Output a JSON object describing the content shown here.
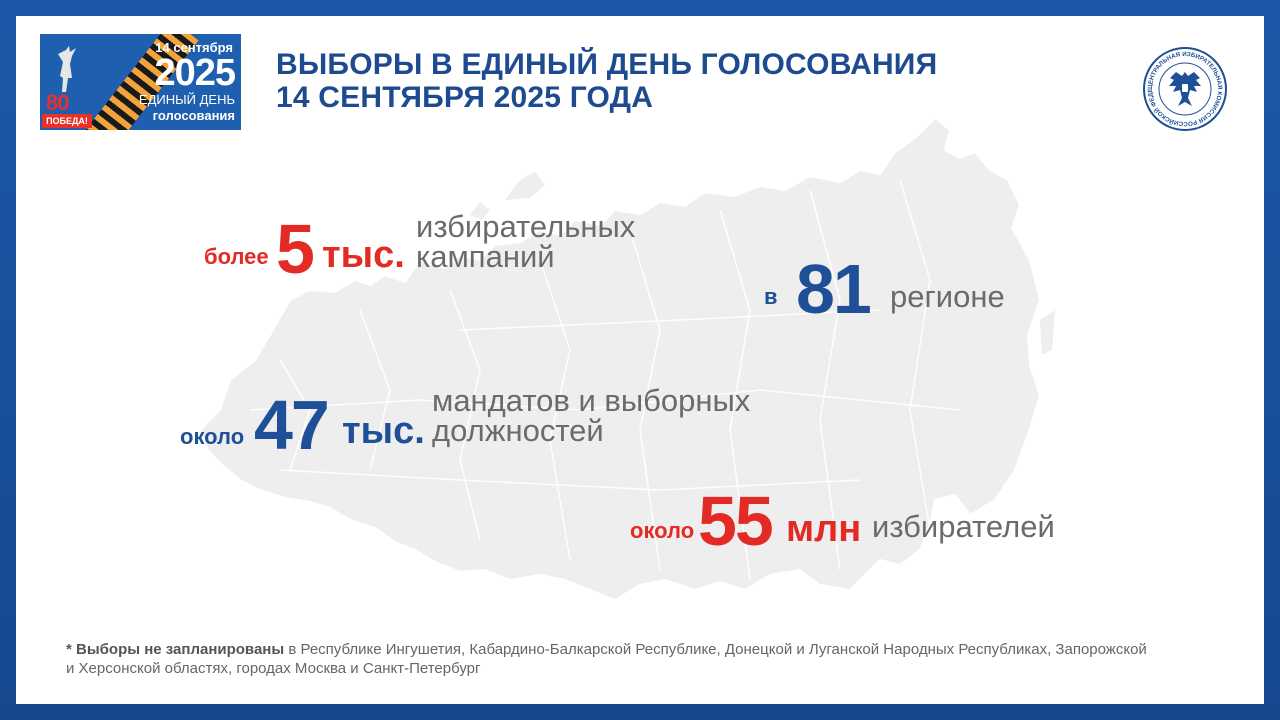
{
  "logo": {
    "date": "14 сентября",
    "year": "2025",
    "line1": "ЕДИНЫЙ ДЕНЬ",
    "line2": "голосования",
    "eighty": "80",
    "pobeda": "ПОБЕДА!"
  },
  "title": {
    "line1": "ВЫБОРЫ В ЕДИНЫЙ ДЕНЬ ГОЛОСОВАНИЯ",
    "line2": "14 СЕНТЯБРЯ 2025 ГОДА"
  },
  "emblem": {
    "ring_text": "ЦЕНТРАЛЬНАЯ ИЗБИРАТЕЛЬНАЯ КОМИССИЯ РОССИЙСКОЙ ФЕДЕРАЦИИ",
    "icon": "double-headed-eagle-icon"
  },
  "stats": {
    "campaigns": {
      "prefix": "более",
      "number": "5",
      "unit": "тыс.",
      "desc1": "избирательных",
      "desc2": "кампаний"
    },
    "regions": {
      "prefix": "в",
      "number": "81",
      "desc": "регионе"
    },
    "mandates": {
      "prefix": "около",
      "number": "47",
      "unit": "тыс.",
      "desc1": "мандатов и выборных",
      "desc2": "должностей"
    },
    "voters": {
      "prefix": "около",
      "number": "55",
      "unit": "млн",
      "desc": "избирателей"
    }
  },
  "footnote": {
    "bold": "* Выборы не запланированы",
    "text1": " в Республике Ингушетия, Кабардино-Балкарской Республике, Донецкой и Луганской Народных Республиках, Запорожской",
    "text2": "и Херсонской областях, городах Москва и Санкт-Петербург"
  },
  "colors": {
    "frame": "#1b59a8",
    "title": "#1e4b8f",
    "red": "#e32b26",
    "blue": "#1e4f97",
    "map": "#eeeeee"
  }
}
